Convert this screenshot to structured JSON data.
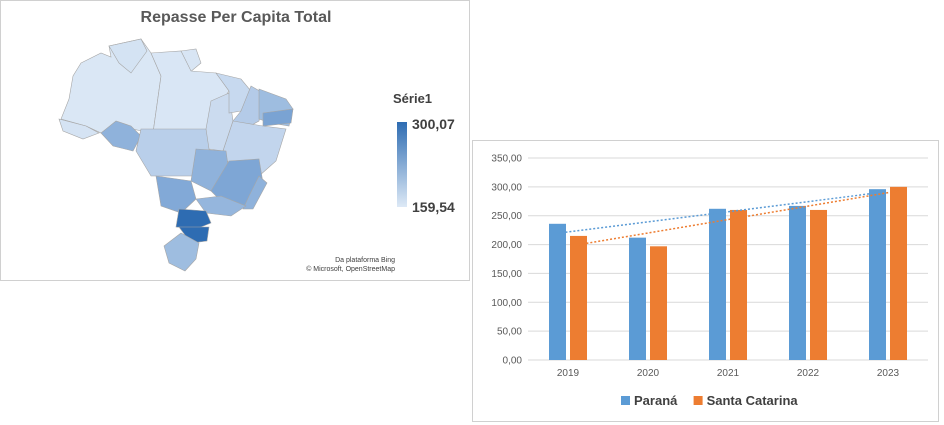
{
  "map": {
    "title": "Repasse Per Capita Total",
    "legend": {
      "title": "Série1",
      "max_label": "300,07",
      "min_label": "159,54",
      "color_high": "#2e6cb2",
      "color_low": "#dde9f6"
    },
    "credit_line1": "Da plataforma Bing",
    "credit_line2": "© Microsoft, OpenStreetMap"
  },
  "chart_data": {
    "type": "bar",
    "categories": [
      "2019",
      "2020",
      "2021",
      "2022",
      "2023"
    ],
    "series": [
      {
        "name": "Paraná",
        "color": "#5b9bd5",
        "values": [
          236,
          212,
          262,
          267,
          296
        ]
      },
      {
        "name": "Santa Catarina",
        "color": "#ed7d31",
        "values": [
          215,
          197,
          260,
          260,
          300
        ]
      }
    ],
    "ylim": [
      0,
      350
    ],
    "yticks": [
      "0,00",
      "50,00",
      "100,00",
      "150,00",
      "200,00",
      "250,00",
      "300,00",
      "350,00"
    ],
    "grid": true,
    "trendlines": "dotted linear trendline per series",
    "legend_position": "bottom"
  }
}
